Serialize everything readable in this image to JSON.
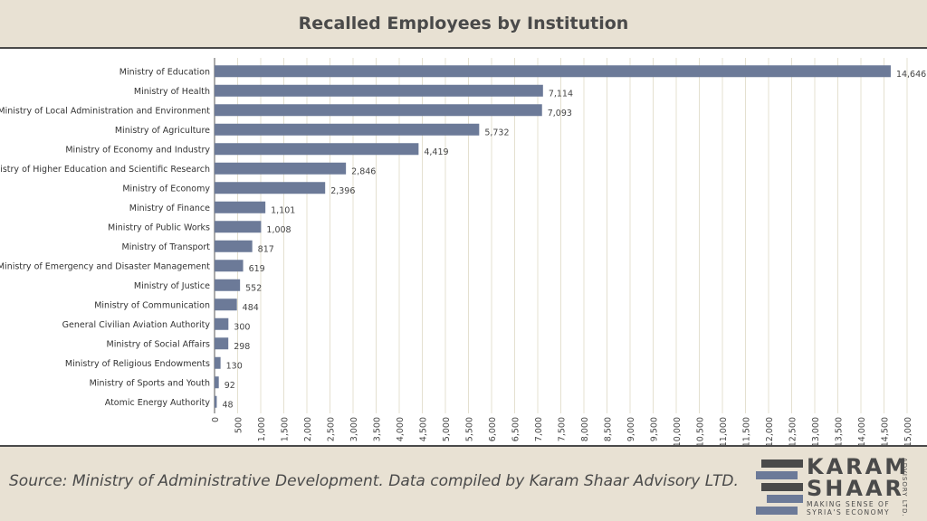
{
  "title": "Recalled Employees by Institution",
  "footer": {
    "source": "Source: Ministry of Administrative Development. Data compiled by Karam Shaar Advisory LTD.",
    "logo": {
      "line1": "KARAM",
      "line2": "SHAAR",
      "tagline1": "MAKING SENSE OF",
      "tagline2": "SYRIA'S ECONOMY",
      "side": "ADVISORY LTD."
    }
  },
  "colors": {
    "bar": "#6c7a98",
    "background": "#e8e1d3",
    "gridline": "#e4e0d0",
    "text": "#333333"
  },
  "chart_data": {
    "type": "bar",
    "orientation": "horizontal",
    "title": "Recalled Employees by Institution",
    "xlabel": "",
    "ylabel": "",
    "xlim": [
      0,
      15000
    ],
    "grid": true,
    "categories": [
      "Ministry of Education",
      "Ministry of Health",
      "Ministry of Local Administration and Environment",
      "Ministry of Agriculture",
      "Ministry of Economy and Industry",
      "Ministry of Higher Education and Scientific Research",
      "Ministry of Economy",
      "Ministry of Finance",
      "Ministry of Public Works",
      "Ministry of Transport",
      "Ministry of Emergency and Disaster Management",
      "Ministry of Justice",
      "Ministry of Communication",
      "General Civilian Aviation Authority",
      "Ministry of Social Affairs",
      "Ministry of Religious Endowments",
      "Ministry of Sports and Youth",
      "Atomic Energy Authority"
    ],
    "values": [
      14646,
      7114,
      7093,
      5732,
      4419,
      2846,
      2396,
      1101,
      1008,
      817,
      619,
      552,
      484,
      300,
      298,
      130,
      92,
      48
    ],
    "value_labels": [
      "14,646",
      "7,114",
      "7,093",
      "5,732",
      "4,419",
      "2,846",
      "2,396",
      "1,101",
      "1,008",
      "817",
      "619",
      "552",
      "484",
      "300",
      "298",
      "130",
      "92",
      "48"
    ],
    "xticks": [
      "0",
      "500",
      "1,000",
      "1,500",
      "2,000",
      "2,500",
      "3,000",
      "3,500",
      "4,000",
      "4,500",
      "5,000",
      "5,500",
      "6,000",
      "6,500",
      "7,000",
      "7,500",
      "8,000",
      "8,500",
      "9,000",
      "9,500",
      "10,000",
      "10,500",
      "11,000",
      "11,500",
      "12,000",
      "12,500",
      "13,000",
      "13,500",
      "14,000",
      "14,500",
      "15,000"
    ]
  }
}
